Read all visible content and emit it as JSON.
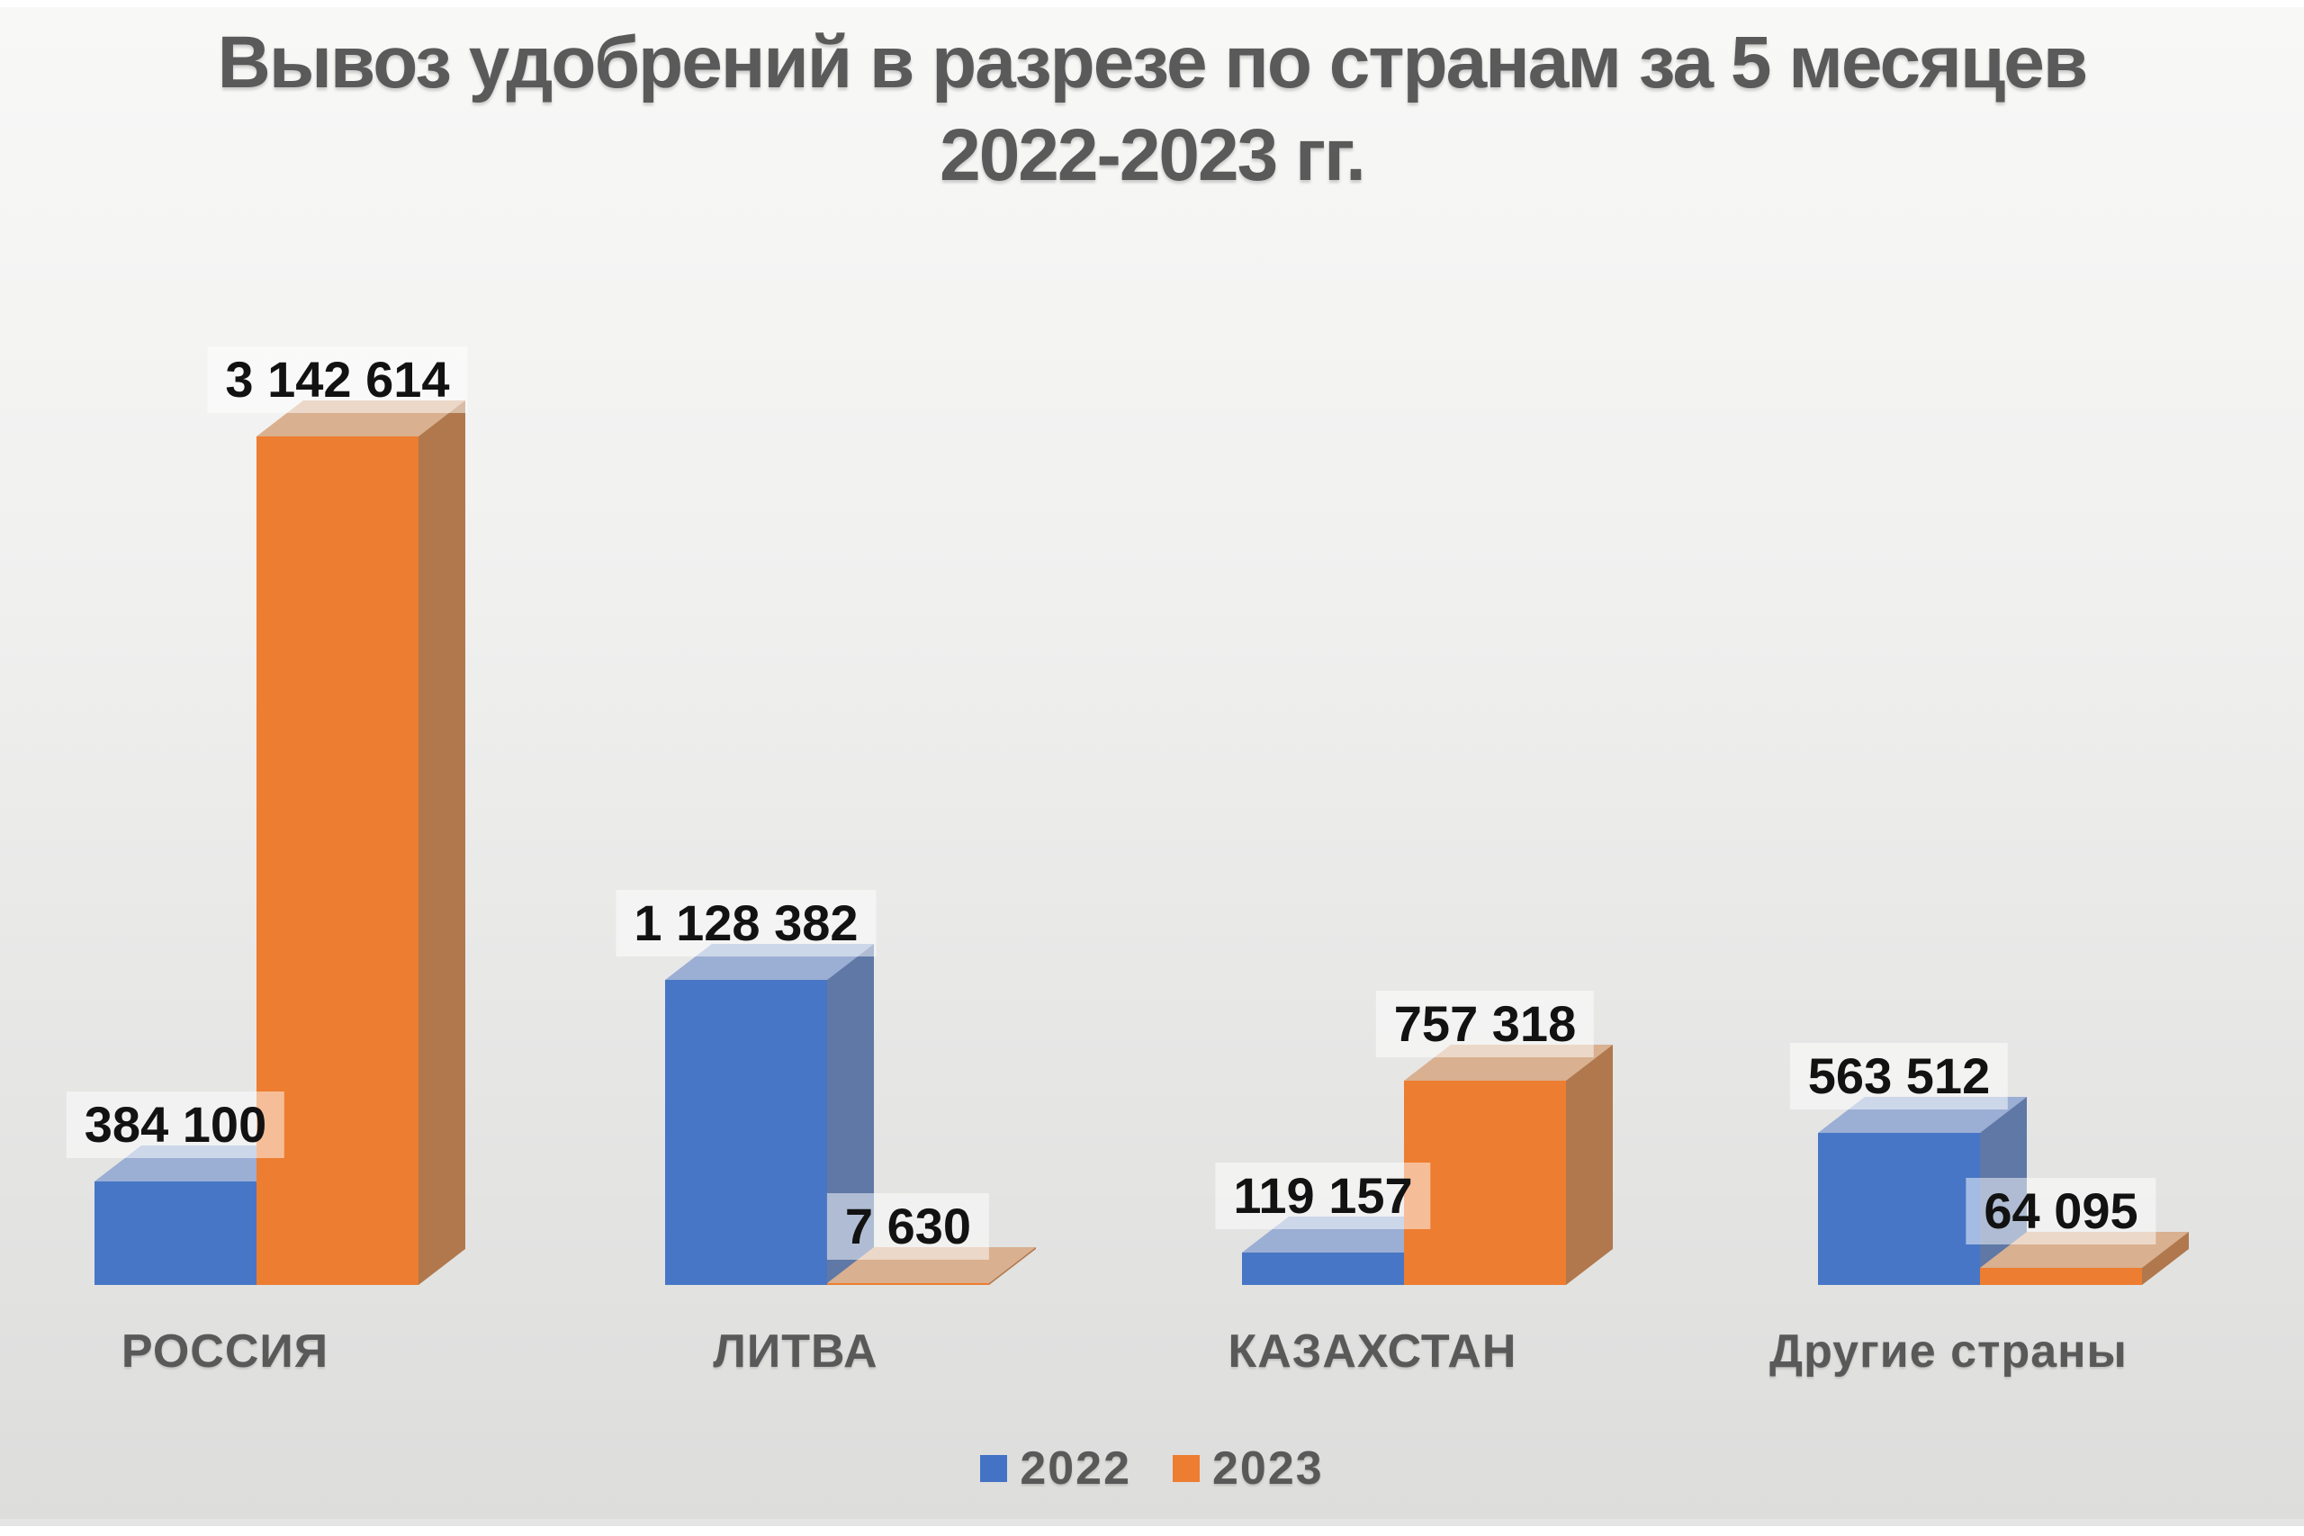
{
  "title": {
    "line1": "Вывоз удобрений в разрезе по странам за 5 месяцев",
    "line2": "2022-2023 гг."
  },
  "legend": [
    {
      "label": "2022",
      "color": "#4472C4"
    },
    {
      "label": "2023",
      "color": "#ED7D31"
    }
  ],
  "chart_data": {
    "type": "bar",
    "projection": "3d",
    "title": "Вывоз удобрений в разрезе по странам за 5 месяцев 2022-2023 гг.",
    "categories": [
      "РОССИЯ",
      "ЛИТВА",
      "КАЗАХСТАН",
      "Другие страны"
    ],
    "series": [
      {
        "name": "2022",
        "values": [
          384100,
          1128382,
          119157,
          563512
        ],
        "labels": [
          "384 100",
          "1 128 382",
          "119 157",
          "563 512"
        ],
        "faces": {
          "front": "#4876C6",
          "top": "#9BAED4",
          "side": "#5F78A6"
        }
      },
      {
        "name": "2023",
        "values": [
          3142614,
          7630,
          757318,
          64095
        ],
        "labels": [
          "3 142 614",
          "7 630",
          "757 318",
          "64 095"
        ],
        "faces": {
          "front": "#ED7D31",
          "top": "#D9B090",
          "side": "#B0784C"
        }
      }
    ],
    "value_axis_visible": false,
    "category_axis_visible": true,
    "gridlines": false,
    "data_labels_visible": true,
    "legend_position": "bottom",
    "background": {
      "top": "#F8F8F7",
      "bottom": "#DDDDDC"
    },
    "text_color": "#595959",
    "data_label_text_color": "#121212"
  }
}
